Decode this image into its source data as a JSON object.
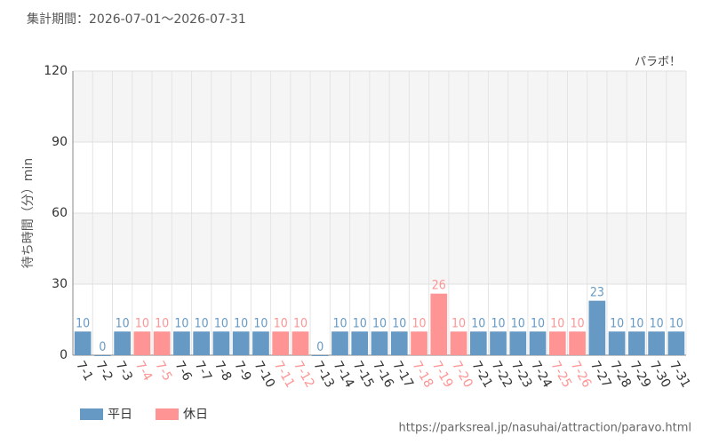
{
  "chart_data": {
    "type": "bar",
    "title": "集計期間：2026-07-01〜2026-07-31",
    "subtitle": "パラボ！",
    "y_label": "待ち時間（分）min",
    "source": "https://parksreal.jp/nasuhai/attraction/paravo.html",
    "categories": [
      "7-1",
      "7-2",
      "7-3",
      "7-4",
      "7-5",
      "7-6",
      "7-7",
      "7-8",
      "7-9",
      "7-10",
      "7-11",
      "7-12",
      "7-13",
      "7-14",
      "7-15",
      "7-16",
      "7-17",
      "7-18",
      "7-19",
      "7-20",
      "7-21",
      "7-22",
      "7-23",
      "7-24",
      "7-25",
      "7-26",
      "7-27",
      "7-28",
      "7-29",
      "7-30",
      "7-31"
    ],
    "series": [
      {
        "name": "平日",
        "color": "#6699c4",
        "values": [
          10,
          0,
          10,
          null,
          null,
          10,
          10,
          10,
          10,
          10,
          null,
          null,
          0,
          10,
          10,
          10,
          10,
          null,
          null,
          null,
          10,
          10,
          10,
          10,
          null,
          null,
          23,
          10,
          10,
          10,
          10
        ]
      },
      {
        "name": "休日",
        "color": "#ff9494",
        "values": [
          null,
          null,
          null,
          10,
          10,
          null,
          null,
          null,
          null,
          null,
          10,
          10,
          null,
          null,
          null,
          null,
          null,
          10,
          26,
          10,
          null,
          null,
          null,
          null,
          10,
          10,
          null,
          null,
          null,
          null,
          null
        ]
      }
    ],
    "ylim": [
      0,
      120
    ],
    "yticks": [
      0,
      30,
      60,
      90,
      120
    ],
    "grid": true
  }
}
